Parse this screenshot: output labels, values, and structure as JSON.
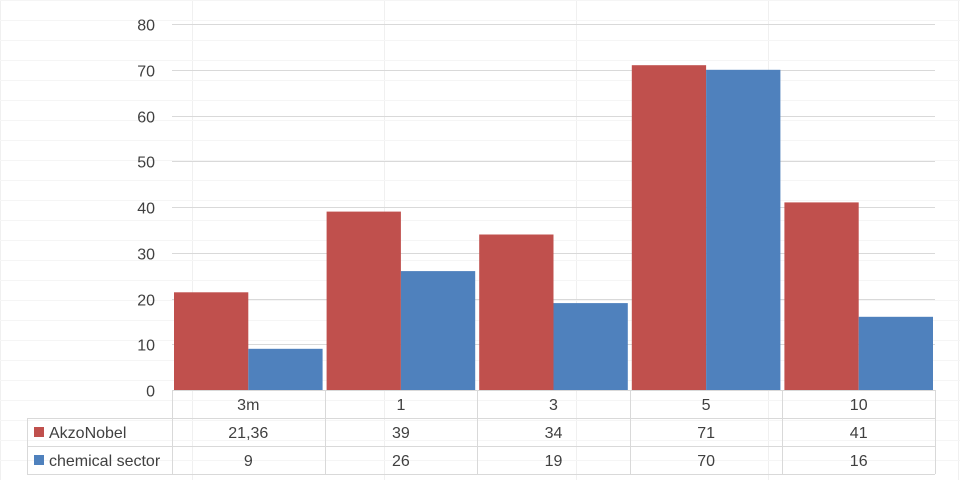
{
  "chart_data": {
    "type": "bar",
    "title": "",
    "xlabel": "",
    "ylabel": "",
    "categories": [
      "3m",
      "1",
      "3",
      "5",
      "10"
    ],
    "ylim": [
      0,
      80
    ],
    "yticks": [
      0,
      10,
      20,
      30,
      40,
      50,
      60,
      70,
      80
    ],
    "grid": true,
    "legend": "data-table-left",
    "series": [
      {
        "name": "AkzoNobel",
        "values": [
          21.36,
          39,
          34,
          71,
          41
        ],
        "labels": [
          "21,36",
          "39",
          "34",
          "71",
          "41"
        ],
        "color": "#C0504D"
      },
      {
        "name": "chemical sector",
        "values": [
          9,
          26,
          19,
          70,
          16
        ],
        "labels": [
          "9",
          "26",
          "19",
          "70",
          "16"
        ],
        "color": "#4F81BD"
      }
    ]
  }
}
